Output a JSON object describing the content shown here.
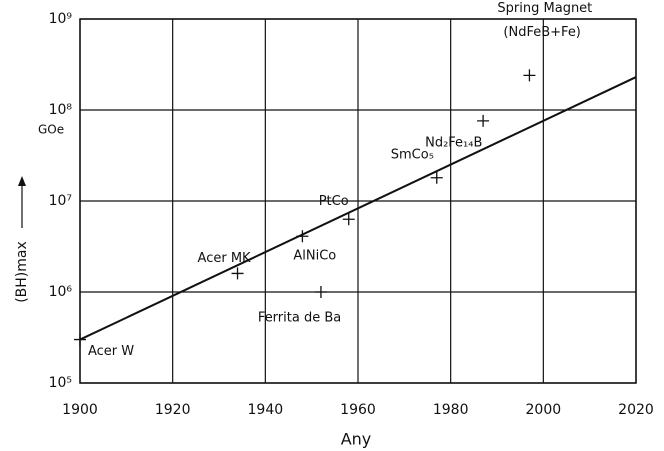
{
  "chart_data": {
    "type": "scatter",
    "x_label": "Any",
    "y_label": "(BH)max",
    "y_unit": "GOe",
    "log_y": true,
    "grid": true,
    "xlim": [
      1900,
      2020
    ],
    "ylim": [
      100000,
      1000000000
    ],
    "xticks": [
      1900,
      1920,
      1940,
      1960,
      1980,
      2000,
      2020
    ],
    "yticks": [
      {
        "value": 100000,
        "label": "10⁵"
      },
      {
        "value": 1000000,
        "label": "10⁶"
      },
      {
        "value": 10000000,
        "label": "10⁷"
      },
      {
        "value": 100000000,
        "label": "10⁸"
      },
      {
        "value": 1000000000,
        "label": "10⁹"
      }
    ],
    "points": {
      "color": "#111111",
      "x": [
        1900,
        1934,
        1948,
        1958,
        1952,
        1977,
        1987,
        1997
      ],
      "values": [
        300000,
        1600000,
        4100000,
        6300000,
        1000000,
        18000000,
        76000000,
        240000000
      ],
      "labels": [
        [
          "Acer W"
        ],
        [
          "Acer MK"
        ],
        [
          "AlNiCo"
        ],
        [
          "PtCo"
        ],
        [
          "Ferrita de Ba"
        ],
        [
          "SmCo₅"
        ],
        [
          "Nd₂Fe₁₄B"
        ],
        [
          "Spring Magnet",
          "(NdFeB+Fe)"
        ]
      ]
    },
    "trend": {
      "color": "#111111",
      "x": [
        1900,
        2020
      ],
      "values": [
        300000,
        230000000
      ]
    }
  }
}
